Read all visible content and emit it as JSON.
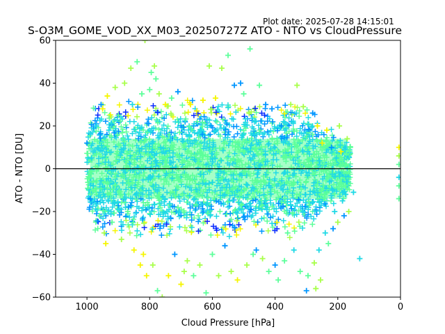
{
  "plot_date": "Plot date: 2025-07-28 14:15:01",
  "chart_data": {
    "type": "scatter",
    "title": "S-O3M_GOME_VOD_XX_M03_20250727Z ATO - NTO vs CloudPressure",
    "xlabel": "Cloud Pressure [hPa]",
    "ylabel": "ATO - NTO [DU]",
    "xlim": [
      1100,
      0
    ],
    "ylim": [
      -60,
      60
    ],
    "x_inverted": true,
    "x_ticks": [
      1000,
      800,
      600,
      400,
      200,
      0
    ],
    "y_ticks": [
      -60,
      -40,
      -20,
      0,
      20,
      40,
      60
    ],
    "x_tick_labels": [
      "1000",
      "800",
      "600",
      "400",
      "200",
      "0"
    ],
    "y_tick_labels": [
      "−60",
      "−40",
      "−20",
      "0",
      "20",
      "40",
      "60"
    ],
    "reference_line": {
      "y": 0,
      "color": "#000000"
    },
    "marker": "plus",
    "grid": false,
    "legend": "none",
    "colormap": [
      "#0a2bff",
      "#0096ff",
      "#1fd9e6",
      "#5cff9a",
      "#a8ff4a",
      "#f5f500"
    ],
    "points": [
      [
        1000,
        12,
        1
      ],
      [
        990,
        -14,
        1
      ],
      [
        985,
        5,
        2
      ],
      [
        980,
        -8,
        2
      ],
      [
        970,
        20,
        2
      ],
      [
        960,
        -22,
        3
      ],
      [
        955,
        30,
        1
      ],
      [
        950,
        28,
        5
      ],
      [
        945,
        -30,
        4
      ],
      [
        940,
        -35,
        5
      ],
      [
        935,
        34,
        5
      ],
      [
        930,
        18,
        2
      ],
      [
        920,
        -25,
        3
      ],
      [
        910,
        38,
        4
      ],
      [
        900,
        25,
        3
      ],
      [
        890,
        -33,
        4
      ],
      [
        880,
        40,
        4
      ],
      [
        870,
        -20,
        3
      ],
      [
        860,
        47,
        4
      ],
      [
        855,
        30,
        2
      ],
      [
        850,
        -38,
        5
      ],
      [
        840,
        50,
        3
      ],
      [
        830,
        -45,
        5
      ],
      [
        825,
        35,
        3
      ],
      [
        820,
        -40,
        5
      ],
      [
        815,
        60,
        4
      ],
      [
        810,
        -50,
        5
      ],
      [
        800,
        37,
        3
      ],
      [
        795,
        45,
        3
      ],
      [
        790,
        -45,
        4
      ],
      [
        785,
        48,
        4
      ],
      [
        780,
        42,
        3
      ],
      [
        775,
        -57,
        3
      ],
      [
        770,
        35,
        4
      ],
      [
        760,
        -60,
        4
      ],
      [
        750,
        30,
        5
      ],
      [
        740,
        -50,
        5
      ],
      [
        730,
        33,
        3
      ],
      [
        720,
        -40,
        1
      ],
      [
        710,
        36,
        1
      ],
      [
        700,
        -54,
        5
      ],
      [
        690,
        -48,
        4
      ],
      [
        680,
        -43,
        4
      ],
      [
        670,
        30,
        5
      ],
      [
        660,
        -50,
        3
      ],
      [
        650,
        27,
        5
      ],
      [
        640,
        -45,
        4
      ],
      [
        630,
        32,
        5
      ],
      [
        620,
        -58,
        3
      ],
      [
        610,
        48,
        4
      ],
      [
        600,
        -40,
        3
      ],
      [
        590,
        33,
        5
      ],
      [
        580,
        -50,
        4
      ],
      [
        570,
        47,
        4
      ],
      [
        560,
        -36,
        1
      ],
      [
        550,
        53,
        3
      ],
      [
        540,
        -48,
        4
      ],
      [
        530,
        39,
        1
      ],
      [
        520,
        -52,
        5
      ],
      [
        510,
        40,
        1
      ],
      [
        500,
        35,
        3
      ],
      [
        490,
        -45,
        4
      ],
      [
        480,
        56,
        3
      ],
      [
        470,
        -40,
        3
      ],
      [
        460,
        -38,
        1
      ],
      [
        450,
        39,
        3
      ],
      [
        440,
        -42,
        4
      ],
      [
        430,
        30,
        1
      ],
      [
        420,
        -48,
        3
      ],
      [
        410,
        28,
        1
      ],
      [
        400,
        -45,
        1
      ],
      [
        390,
        -52,
        3
      ],
      [
        380,
        20,
        1
      ],
      [
        370,
        -43,
        3
      ],
      [
        360,
        -30,
        3
      ],
      [
        350,
        30,
        4
      ],
      [
        340,
        -38,
        2
      ],
      [
        330,
        39,
        4
      ],
      [
        320,
        -48,
        3
      ],
      [
        310,
        29,
        4
      ],
      [
        300,
        -57,
        1
      ],
      [
        295,
        -50,
        3
      ],
      [
        290,
        15,
        2
      ],
      [
        280,
        26,
        1
      ],
      [
        275,
        -44,
        4
      ],
      [
        270,
        -56,
        4
      ],
      [
        265,
        20,
        5
      ],
      [
        260,
        -38,
        2
      ],
      [
        255,
        -52,
        4
      ],
      [
        250,
        12,
        5
      ],
      [
        240,
        -30,
        2
      ],
      [
        235,
        18,
        5
      ],
      [
        230,
        -35,
        3
      ],
      [
        220,
        10,
        1
      ],
      [
        215,
        -28,
        1
      ],
      [
        210,
        -20,
        2
      ],
      [
        205,
        5,
        2
      ],
      [
        200,
        -25,
        4
      ],
      [
        195,
        20,
        4
      ],
      [
        190,
        8,
        5
      ],
      [
        185,
        -15,
        2
      ],
      [
        180,
        -22,
        1
      ],
      [
        175,
        -12,
        2
      ],
      [
        170,
        14,
        4
      ],
      [
        165,
        -20,
        4
      ],
      [
        160,
        10,
        3
      ],
      [
        150,
        -11,
        2
      ],
      [
        130,
        -42,
        2
      ],
      [
        5,
        10,
        5
      ],
      [
        5,
        6,
        4
      ],
      [
        5,
        2,
        3
      ],
      [
        5,
        -4,
        2
      ],
      [
        5,
        -8,
        3
      ],
      [
        5,
        -14,
        3
      ]
    ]
  }
}
